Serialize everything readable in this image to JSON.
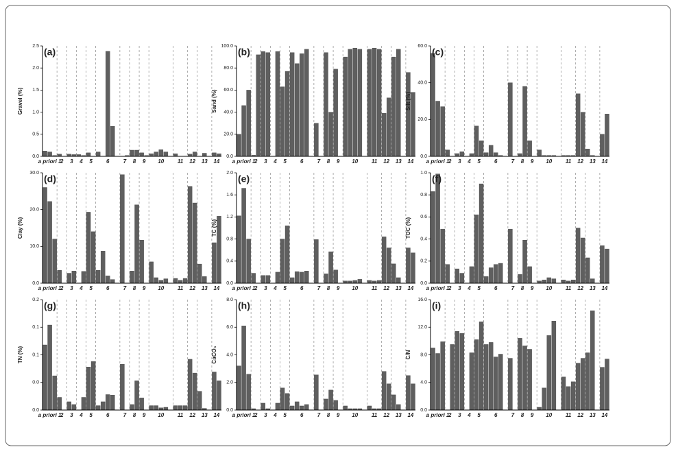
{
  "chart_data": [
    {
      "type": "bar",
      "title": "(a)",
      "y_label": "Gravel (%)",
      "color": "#5f5f5f",
      "categories": [
        "a priori 1",
        null,
        null,
        "2",
        null,
        "3",
        null,
        "4",
        null,
        "5",
        null,
        "6",
        null,
        null,
        null,
        null,
        "7",
        null,
        "8",
        null,
        "9",
        null,
        "10",
        null,
        null,
        null,
        null,
        "11",
        null,
        null,
        "12",
        null,
        "13",
        null,
        null,
        "14",
        null
      ],
      "values": [
        0.12,
        0.1,
        0.02,
        0.05,
        0,
        0.05,
        0.04,
        0.04,
        0.02,
        0.08,
        0,
        0.1,
        0,
        2.38,
        0.68,
        0,
        0,
        0.02,
        0.14,
        0.14,
        0.08,
        0.02,
        0.06,
        0.1,
        0.15,
        0.1,
        0,
        0.06,
        0,
        0,
        0.05,
        0.1,
        0,
        0.07,
        0,
        0.08,
        0.06
      ],
      "ylim": [
        0,
        2.5
      ],
      "yticks": [
        {
          "value": 0,
          "label": "0.0"
        },
        {
          "value": 0.5,
          "label": "0.5"
        },
        {
          "value": 1,
          "label": "1.0"
        },
        {
          "value": 1.5,
          "label": "1.5"
        },
        {
          "value": 2,
          "label": "2.0"
        },
        {
          "value": 2.5,
          "label": "2.5"
        }
      ]
    },
    {
      "type": "bar",
      "title": "(b)",
      "y_label": "Sand (%)",
      "color": "#5f5f5f",
      "categories": [
        "a priori 1",
        null,
        null,
        "2",
        null,
        "3",
        null,
        "4",
        null,
        "5",
        null,
        "6",
        null,
        null,
        null,
        null,
        "7",
        null,
        "8",
        null,
        "9",
        null,
        "10",
        null,
        null,
        null,
        null,
        "11",
        null,
        null,
        "12",
        null,
        "13",
        null,
        null,
        "14",
        null
      ],
      "values": [
        20,
        46,
        60,
        1,
        92,
        95,
        94,
        0,
        95,
        63,
        77,
        94,
        84,
        93,
        97,
        0,
        30,
        0,
        94,
        40,
        79,
        0,
        90,
        97,
        98,
        97,
        0,
        97,
        98,
        97,
        39,
        53,
        90,
        97,
        0,
        76,
        58
      ],
      "ylim": [
        0,
        100
      ],
      "yticks": [
        {
          "value": 0,
          "label": "0.0"
        },
        {
          "value": 20,
          "label": "20.0"
        },
        {
          "value": 40,
          "label": "40.0"
        },
        {
          "value": 60,
          "label": "60.0"
        },
        {
          "value": 80,
          "label": "80.0"
        },
        {
          "value": 100,
          "label": "100.0"
        }
      ]
    },
    {
      "type": "bar",
      "title": "(c)",
      "y_label": "Silt (%)",
      "color": "#5f5f5f",
      "categories": [
        "a priori 1",
        null,
        null,
        "2",
        null,
        "3",
        null,
        "4",
        null,
        "5",
        null,
        "6",
        null,
        null,
        null,
        null,
        "7",
        null,
        "8",
        null,
        "9",
        null,
        "10",
        null,
        null,
        null,
        null,
        "11",
        null,
        null,
        "12",
        null,
        "13",
        null,
        null,
        "14",
        null
      ],
      "values": [
        56,
        30,
        27,
        3.5,
        0,
        1.5,
        2.5,
        0,
        1.5,
        16.5,
        8.5,
        2,
        6,
        2,
        0.5,
        0,
        40,
        0,
        1.5,
        38,
        8.5,
        0,
        3.5,
        0.5,
        0.5,
        0.5,
        0,
        0.5,
        0.5,
        0.5,
        34,
        24,
        4,
        0.5,
        0,
        12,
        23
      ],
      "ylim": [
        0,
        60
      ],
      "yticks": [
        {
          "value": 0,
          "label": "0.0"
        },
        {
          "value": 20,
          "label": "20.0"
        },
        {
          "value": 40,
          "label": "40.0"
        },
        {
          "value": 60,
          "label": "60.0"
        }
      ]
    },
    {
      "type": "bar",
      "title": "(d)",
      "y_label": "Clay (%)",
      "color": "#5f5f5f",
      "categories": [
        "a priori 1",
        null,
        null,
        "2",
        null,
        "3",
        null,
        "4",
        null,
        "5",
        null,
        "6",
        null,
        null,
        null,
        null,
        "7",
        null,
        "8",
        null,
        "9",
        null,
        "10",
        null,
        null,
        null,
        null,
        "11",
        null,
        null,
        "12",
        null,
        "13",
        null,
        null,
        "14",
        null
      ],
      "values": [
        26,
        22.2,
        12,
        3.5,
        0,
        2.7,
        3.3,
        0,
        3.2,
        19.3,
        14,
        3.5,
        8.7,
        2,
        1,
        0,
        29.5,
        0,
        3.3,
        21.3,
        11.7,
        0,
        5.8,
        1.5,
        0.8,
        1.2,
        0,
        1.3,
        0.8,
        1.3,
        26.3,
        21.8,
        5.2,
        1.8,
        0,
        11,
        18.2
      ],
      "ylim": [
        0,
        30
      ],
      "yticks": [
        {
          "value": 0,
          "label": "0.0"
        },
        {
          "value": 10,
          "label": "10.0"
        },
        {
          "value": 20,
          "label": "20.0"
        },
        {
          "value": 30,
          "label": "30.0"
        }
      ]
    },
    {
      "type": "bar",
      "title": "(e)",
      "y_label": "TC (%)",
      "color": "#5f5f5f",
      "categories": [
        "a priori 1",
        null,
        null,
        "2",
        null,
        "3",
        null,
        "4",
        null,
        "5",
        null,
        "6",
        null,
        null,
        null,
        null,
        "7",
        null,
        "8",
        null,
        "9",
        null,
        "10",
        null,
        null,
        null,
        null,
        "11",
        null,
        null,
        "12",
        null,
        "13",
        null,
        null,
        "14",
        null
      ],
      "values": [
        1.22,
        1.72,
        0.8,
        0.18,
        0,
        0.14,
        0.14,
        0,
        0.2,
        0.8,
        1.04,
        0.1,
        0.21,
        0.2,
        0.22,
        0,
        0.79,
        0,
        0.17,
        0.57,
        0.24,
        0,
        0.04,
        0.04,
        0.05,
        0.07,
        0,
        0.05,
        0.04,
        0.05,
        0.84,
        0.64,
        0.35,
        0.1,
        0,
        0.64,
        0.55
      ],
      "ylim": [
        0,
        2
      ],
      "yticks": [
        {
          "value": 0,
          "label": "0.0"
        },
        {
          "value": 0.4,
          "label": "0.4"
        },
        {
          "value": 0.8,
          "label": "0.8"
        },
        {
          "value": 1.2,
          "label": "1.2"
        },
        {
          "value": 1.6,
          "label": "1.6"
        },
        {
          "value": 2,
          "label": "2.0"
        }
      ]
    },
    {
      "type": "bar",
      "title": "(f)",
      "y_label": "TOC (%)",
      "color": "#5f5f5f",
      "categories": [
        "a priori 1",
        null,
        null,
        "2",
        null,
        "3",
        null,
        "4",
        null,
        "5",
        null,
        "6",
        null,
        null,
        null,
        null,
        "7",
        null,
        "8",
        null,
        "9",
        null,
        "10",
        null,
        null,
        null,
        null,
        "11",
        null,
        null,
        "12",
        null,
        "13",
        null,
        null,
        "14",
        null
      ],
      "values": [
        0.83,
        0.99,
        0.49,
        0.17,
        0,
        0.13,
        0.09,
        0,
        0.15,
        0.62,
        0.9,
        0.06,
        0.14,
        0.17,
        0.18,
        0,
        0.49,
        0,
        0.08,
        0.39,
        0.15,
        0,
        0.02,
        0.03,
        0.05,
        0.04,
        0,
        0.03,
        0.02,
        0.03,
        0.5,
        0.41,
        0.23,
        0.04,
        0,
        0.34,
        0.31
      ],
      "ylim": [
        0,
        1
      ],
      "yticks": [
        {
          "value": 0,
          "label": "0.0"
        },
        {
          "value": 0.2,
          "label": "0.2"
        },
        {
          "value": 0.4,
          "label": "0.4"
        },
        {
          "value": 0.6,
          "label": "0.6"
        },
        {
          "value": 0.8,
          "label": "0.8"
        },
        {
          "value": 1,
          "label": "1.0"
        }
      ]
    },
    {
      "type": "bar",
      "title": "(g)",
      "y_label": "TN (%)",
      "color": "#5f5f5f",
      "categories": [
        "a priori 1",
        null,
        null,
        "2",
        null,
        "3",
        null,
        "4",
        null,
        "5",
        null,
        "6",
        null,
        null,
        null,
        null,
        "7",
        null,
        "8",
        null,
        "9",
        null,
        "10",
        null,
        null,
        null,
        null,
        "11",
        null,
        null,
        "12",
        null,
        "13",
        null,
        null,
        "14",
        null
      ],
      "values": [
        0.118,
        0.154,
        0.062,
        0.023,
        0,
        0.015,
        0.01,
        0,
        0.023,
        0.078,
        0.088,
        0.008,
        0.015,
        0.028,
        0.027,
        0,
        0.083,
        0,
        0.01,
        0.053,
        0.022,
        0,
        0.008,
        0.008,
        0.004,
        0.005,
        0,
        0.008,
        0.008,
        0.008,
        0.092,
        0.067,
        0.034,
        0.003,
        0,
        0.069,
        0.053
      ],
      "ylim": [
        0,
        0.2
      ],
      "yticks": [
        {
          "value": 0,
          "label": "0.0"
        },
        {
          "value": 0.05,
          "label": "0.0"
        },
        {
          "value": 0.1,
          "label": "0.1"
        },
        {
          "value": 0.15,
          "label": "0.1"
        },
        {
          "value": 0.2,
          "label": "0.2"
        }
      ]
    },
    {
      "type": "bar",
      "title": "(h)",
      "y_label": "CaCO₃",
      "color": "#5f5f5f",
      "categories": [
        "a priori 1",
        null,
        null,
        "2",
        null,
        "3",
        null,
        "4",
        null,
        "5",
        null,
        "6",
        null,
        null,
        null,
        null,
        "7",
        null,
        "8",
        null,
        "9",
        null,
        "10",
        null,
        null,
        null,
        null,
        "11",
        null,
        null,
        "12",
        null,
        "13",
        null,
        null,
        "14",
        null
      ],
      "values": [
        3.2,
        6.1,
        2.6,
        0.1,
        0,
        0.5,
        0.1,
        0,
        0.5,
        1.6,
        1.2,
        0.3,
        0.6,
        0.3,
        0.4,
        0,
        2.55,
        0,
        0.8,
        1.45,
        0.7,
        0,
        0.3,
        0.1,
        0.1,
        0.1,
        0,
        0.3,
        0.1,
        0.1,
        2.8,
        1.9,
        1.1,
        0.4,
        0,
        2.5,
        1.9
      ],
      "ylim": [
        0,
        8
      ],
      "yticks": [
        {
          "value": 0,
          "label": "0.0"
        },
        {
          "value": 2,
          "label": "2.0"
        },
        {
          "value": 4,
          "label": "4.0"
        },
        {
          "value": 6,
          "label": "6.0"
        },
        {
          "value": 8,
          "label": "8.0"
        }
      ]
    },
    {
      "type": "bar",
      "title": "(i)",
      "y_label": "C/N",
      "color": "#5f5f5f",
      "categories": [
        "a priori 1",
        null,
        null,
        "2",
        null,
        "3",
        null,
        "4",
        null,
        "5",
        null,
        "6",
        null,
        null,
        null,
        null,
        "7",
        null,
        "8",
        null,
        "9",
        null,
        "10",
        null,
        null,
        null,
        null,
        "11",
        null,
        null,
        "12",
        null,
        "13",
        null,
        null,
        "14",
        null
      ],
      "values": [
        9,
        8.2,
        9.9,
        0,
        9.5,
        11.4,
        11.1,
        0,
        8.3,
        10.2,
        12.8,
        9.5,
        9.8,
        7.7,
        8.1,
        0,
        7.5,
        0,
        10.4,
        9.3,
        8.8,
        0,
        0.4,
        3.2,
        10.8,
        12.9,
        0,
        4.8,
        3.4,
        4.1,
        6.8,
        7.5,
        8.3,
        14.4,
        0,
        6.2,
        7.4
      ],
      "ylim": [
        0,
        16
      ],
      "yticks": [
        {
          "value": 0,
          "label": "0.0"
        },
        {
          "value": 4,
          "label": "4.0"
        },
        {
          "value": 8,
          "label": "8.0"
        },
        {
          "value": 12,
          "label": "12.0"
        },
        {
          "value": 16,
          "label": "16.0"
        }
      ]
    }
  ]
}
